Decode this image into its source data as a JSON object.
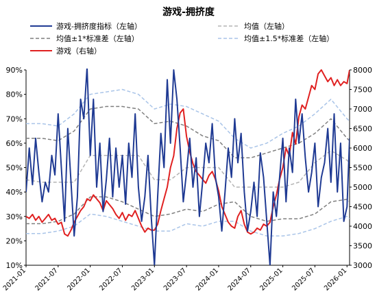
{
  "chart_data": {
    "type": "line",
    "title": "游戏-拥挤度",
    "colors": {
      "crowding": "#1f3a93",
      "mean": "#b3b3b3",
      "band1": "#7f7f7f",
      "band15": "#a9c4e8",
      "price": "#e02020",
      "axis": "#000000"
    },
    "x_ticks": [
      "2021-01",
      "2021-07",
      "2022-01",
      "2022-07",
      "2023-01",
      "2023-07",
      "2024-01",
      "2024-07",
      "2025-01",
      "2025-07",
      "2026-01"
    ],
    "y_left": {
      "label": "左轴",
      "ticks": [
        "10%",
        "20%",
        "30%",
        "40%",
        "50%",
        "60%",
        "70%",
        "80%",
        "90%"
      ],
      "range": [
        10,
        90
      ],
      "unit": "%"
    },
    "y_right": {
      "label": "右轴",
      "ticks": [
        "3000",
        "3500",
        "4000",
        "4500",
        "5000",
        "5500",
        "6000",
        "6500",
        "7000",
        "7500",
        "8000"
      ],
      "range": [
        3000,
        8000
      ]
    },
    "legend": [
      {
        "key": "crowding",
        "label": "游戏-拥挤度指标（左轴）",
        "style": "solid"
      },
      {
        "key": "mean",
        "label": "均值（左轴）",
        "style": "dashed"
      },
      {
        "key": "band1",
        "label": "均值±1*标准差（左轴）",
        "style": "dashed"
      },
      {
        "key": "band15",
        "label": "均值±1.5*标准差（左轴）",
        "style": "dashed"
      },
      {
        "key": "price",
        "label": "游戏（右轴）",
        "style": "solid"
      }
    ],
    "series": [
      {
        "key": "crowding",
        "name": "游戏-拥挤度指标",
        "axis": "left",
        "color": "#1f3a93",
        "width": 2,
        "x": [
          2021.0,
          2021.05,
          2021.1,
          2021.15,
          2021.2,
          2021.25,
          2021.3,
          2021.35,
          2021.4,
          2021.45,
          2021.5,
          2021.55,
          2021.6,
          2021.65,
          2021.7,
          2021.75,
          2021.8,
          2021.85,
          2021.9,
          2021.95,
          2022.0,
          2022.05,
          2022.1,
          2022.15,
          2022.2,
          2022.25,
          2022.3,
          2022.35,
          2022.4,
          2022.45,
          2022.5,
          2022.55,
          2022.6,
          2022.65,
          2022.7,
          2022.75,
          2022.8,
          2022.85,
          2022.9,
          2022.95,
          2023.0,
          2023.05,
          2023.1,
          2023.15,
          2023.2,
          2023.25,
          2023.3,
          2023.35,
          2023.4,
          2023.45,
          2023.5,
          2023.55,
          2023.6,
          2023.65,
          2023.7,
          2023.75,
          2023.8,
          2023.85,
          2023.9,
          2023.95,
          2024.0,
          2024.05,
          2024.1,
          2024.15,
          2024.2,
          2024.25,
          2024.3,
          2024.35,
          2024.4,
          2024.45,
          2024.5,
          2024.55,
          2024.6,
          2024.65,
          2024.7,
          2024.75,
          2024.8,
          2024.85,
          2024.9,
          2024.95,
          2025.0,
          2025.05,
          2025.1,
          2025.15,
          2025.2,
          2025.25,
          2025.3,
          2025.35,
          2025.4,
          2025.45,
          2025.5,
          2025.55,
          2025.6,
          2025.65,
          2025.7,
          2025.75,
          2025.8,
          2025.85,
          2025.9,
          2025.95,
          2026.0,
          2026.04
        ],
        "y": [
          40,
          58,
          43,
          62,
          48,
          36,
          44,
          40,
          55,
          47,
          72,
          50,
          28,
          66,
          44,
          22,
          38,
          78,
          70,
          91,
          55,
          78,
          42,
          60,
          32,
          45,
          62,
          38,
          58,
          42,
          55,
          35,
          60,
          46,
          72,
          42,
          28,
          38,
          55,
          30,
          10,
          38,
          64,
          50,
          86,
          60,
          90,
          78,
          58,
          36,
          48,
          62,
          42,
          54,
          30,
          44,
          60,
          52,
          68,
          46,
          38,
          24,
          40,
          58,
          46,
          70,
          52,
          64,
          40,
          24,
          32,
          44,
          30,
          56,
          46,
          28,
          10,
          40,
          30,
          46,
          62,
          36,
          58,
          48,
          78,
          60,
          72,
          54,
          40,
          48,
          60,
          34,
          46,
          52,
          66,
          44,
          72,
          40,
          60,
          28,
          34,
          62
        ]
      },
      {
        "key": "mean",
        "name": "均值",
        "axis": "left",
        "color": "#b3b3b3",
        "width": 1.5,
        "x": [
          2021.0,
          2021.25,
          2021.5,
          2021.75,
          2022.0,
          2022.25,
          2022.5,
          2022.75,
          2023.0,
          2023.25,
          2023.5,
          2023.75,
          2024.0,
          2024.25,
          2024.5,
          2024.75,
          2025.0,
          2025.25,
          2025.5,
          2025.75,
          2026.0,
          2026.04
        ],
        "y": [
          45,
          44,
          44,
          44,
          55,
          55,
          55,
          55,
          45,
          45,
          50,
          50,
          50,
          42,
          42,
          42,
          42,
          44,
          52,
          57,
          53,
          52
        ]
      },
      {
        "key": "band1_upper",
        "name": "均值+1*标准差",
        "axis": "left",
        "color": "#7f7f7f",
        "width": 1.5,
        "x": [
          2021.0,
          2021.25,
          2021.5,
          2021.75,
          2022.0,
          2022.25,
          2022.5,
          2022.75,
          2023.0,
          2023.25,
          2023.5,
          2023.75,
          2024.0,
          2024.25,
          2024.5,
          2024.75,
          2025.0,
          2025.25,
          2025.5,
          2025.75,
          2026.0,
          2026.04
        ],
        "y": [
          62,
          62,
          61,
          65,
          74,
          75,
          75,
          74,
          68,
          69,
          67,
          63,
          61,
          54,
          54,
          56,
          58,
          60,
          64,
          70,
          62,
          61
        ]
      },
      {
        "key": "band1_lower",
        "name": "均值-1*标准差",
        "axis": "left",
        "color": "#7f7f7f",
        "width": 1.5,
        "x": [
          2021.0,
          2021.25,
          2021.5,
          2021.75,
          2022.0,
          2022.25,
          2022.5,
          2022.75,
          2023.0,
          2023.25,
          2023.5,
          2023.75,
          2024.0,
          2024.25,
          2024.5,
          2024.75,
          2025.0,
          2025.25,
          2025.5,
          2025.75,
          2026.0,
          2026.04
        ],
        "y": [
          27,
          27,
          28,
          31,
          38,
          38,
          36,
          33,
          30,
          31,
          33,
          32,
          35,
          36,
          30,
          28,
          29,
          29,
          31,
          36,
          37,
          36
        ]
      },
      {
        "key": "band15_upper",
        "name": "均值+1.5*标准差",
        "axis": "left",
        "color": "#a9c4e8",
        "width": 1.5,
        "x": [
          2021.0,
          2021.25,
          2021.5,
          2021.75,
          2022.0,
          2022.25,
          2022.5,
          2022.75,
          2023.0,
          2023.25,
          2023.5,
          2023.75,
          2024.0,
          2024.25,
          2024.5,
          2024.75,
          2025.0,
          2025.25,
          2025.5,
          2025.75,
          2026.0,
          2026.04
        ],
        "y": [
          68,
          68,
          67,
          72,
          80,
          81,
          82,
          80,
          74,
          76,
          75,
          72,
          69,
          62,
          58,
          60,
          64,
          67,
          72,
          78,
          70,
          69
        ]
      },
      {
        "key": "band15_lower",
        "name": "均值-1.5*标准差",
        "axis": "left",
        "color": "#a9c4e8",
        "width": 1.5,
        "x": [
          2021.0,
          2021.25,
          2021.5,
          2021.75,
          2022.0,
          2022.25,
          2022.5,
          2022.75,
          2023.0,
          2023.25,
          2023.5,
          2023.75,
          2024.0,
          2024.25,
          2024.5,
          2024.75,
          2025.0,
          2025.25,
          2025.5,
          2025.75,
          2026.0,
          2026.04
        ],
        "y": [
          23,
          23,
          24,
          26,
          31,
          30,
          28,
          26,
          24,
          24,
          27,
          26,
          28,
          28,
          24,
          22,
          22,
          23,
          25,
          28,
          30,
          29
        ]
      },
      {
        "key": "price",
        "name": "游戏",
        "axis": "right",
        "color": "#e02020",
        "width": 2,
        "x": [
          2021.0,
          2021.05,
          2021.1,
          2021.15,
          2021.2,
          2021.25,
          2021.3,
          2021.35,
          2021.4,
          2021.45,
          2021.5,
          2021.55,
          2021.6,
          2021.65,
          2021.7,
          2021.75,
          2021.8,
          2021.85,
          2021.9,
          2021.95,
          2022.0,
          2022.05,
          2022.1,
          2022.15,
          2022.2,
          2022.25,
          2022.3,
          2022.35,
          2022.4,
          2022.45,
          2022.5,
          2022.55,
          2022.6,
          2022.65,
          2022.7,
          2022.75,
          2022.8,
          2022.85,
          2022.9,
          2022.95,
          2023.0,
          2023.05,
          2023.1,
          2023.15,
          2023.2,
          2023.25,
          2023.3,
          2023.35,
          2023.4,
          2023.45,
          2023.5,
          2023.55,
          2023.6,
          2023.65,
          2023.7,
          2023.75,
          2023.8,
          2023.85,
          2023.9,
          2023.95,
          2024.0,
          2024.05,
          2024.1,
          2024.15,
          2024.2,
          2024.25,
          2024.3,
          2024.35,
          2024.4,
          2024.45,
          2024.5,
          2024.55,
          2024.6,
          2024.65,
          2024.7,
          2024.75,
          2024.8,
          2024.85,
          2024.9,
          2024.95,
          2025.0,
          2025.05,
          2025.1,
          2025.15,
          2025.2,
          2025.25,
          2025.3,
          2025.35,
          2025.4,
          2025.45,
          2025.5,
          2025.55,
          2025.6,
          2025.65,
          2025.7,
          2025.75,
          2025.8,
          2025.85,
          2025.9,
          2025.95,
          2026.0,
          2026.04
        ],
        "y": [
          4250,
          4200,
          4300,
          4150,
          4250,
          4100,
          4200,
          4300,
          4150,
          4200,
          4050,
          4100,
          3800,
          3750,
          3900,
          4100,
          4250,
          4400,
          4500,
          4700,
          4650,
          4800,
          4700,
          4600,
          4400,
          4650,
          4550,
          4450,
          4300,
          4200,
          4350,
          4150,
          4300,
          4250,
          4400,
          4200,
          4000,
          3850,
          3950,
          3900,
          3900,
          4050,
          4400,
          4700,
          5000,
          5500,
          5800,
          6500,
          6900,
          7000,
          6300,
          5900,
          5600,
          5400,
          5300,
          5200,
          5100,
          5300,
          5400,
          5200,
          4900,
          4500,
          4300,
          4100,
          4000,
          3950,
          4250,
          4400,
          4050,
          3850,
          3800,
          3850,
          3950,
          3900,
          4050,
          4000,
          4100,
          4500,
          4800,
          5200,
          5500,
          6000,
          5800,
          6400,
          6100,
          6800,
          7100,
          7000,
          7300,
          7600,
          7500,
          7900,
          8000,
          7850,
          7700,
          7800,
          7600,
          7750,
          7600,
          7700,
          7650,
          8000
        ]
      }
    ]
  }
}
